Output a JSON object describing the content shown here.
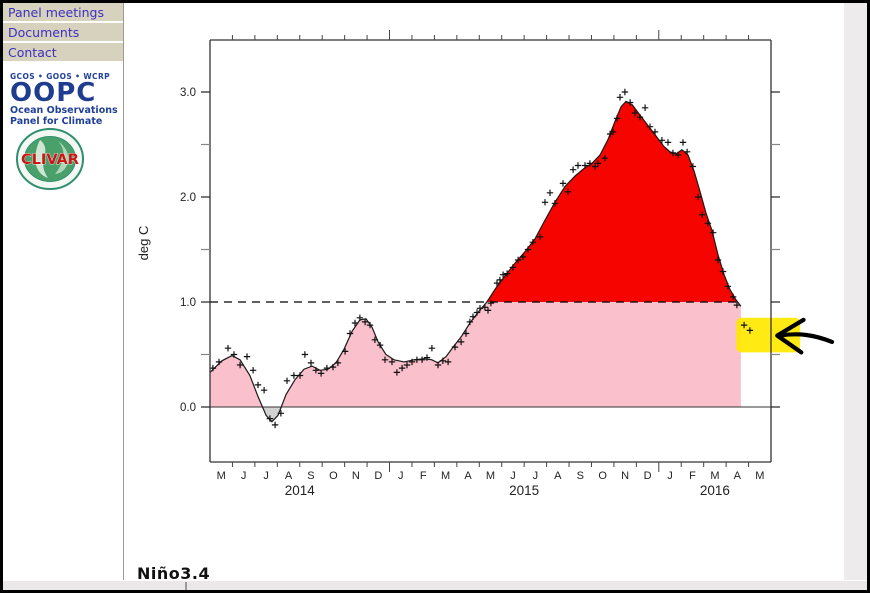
{
  "page": {
    "sidebar": {
      "links": [
        {
          "label": "Panel meetings"
        },
        {
          "label": "Documents"
        },
        {
          "label": "Contact"
        }
      ],
      "oopc_logo": {
        "orgs_line": "GCOS • GOOS • WCRP",
        "acronym": "OOPC",
        "name_line1": "Ocean Observations",
        "name_line2": "Panel for Climate"
      },
      "clivar_logo": {
        "text": "CLIVAR"
      }
    },
    "footer_caption": "Niño3.4",
    "colors": {
      "sidebar_bg": "#d6d2bd",
      "link_text": "#3d2fc0",
      "logo_navy": "#1e3d8f",
      "clivar_red": "#cc1414",
      "clivar_green": "#4aa06a"
    }
  },
  "chart_data": {
    "type": "area",
    "title": "",
    "xlabel": "",
    "ylabel": "deg C",
    "grid": false,
    "x_axis": {
      "start_month": "May 2014",
      "end_month": "May 2016",
      "months_shown": 25,
      "month_labels": [
        "M",
        "J",
        "J",
        "A",
        "S",
        "O",
        "N",
        "D",
        "J",
        "F",
        "M",
        "A",
        "M",
        "J",
        "J",
        "A",
        "S",
        "O",
        "N",
        "D",
        "J",
        "F",
        "M",
        "A",
        "M"
      ],
      "year_labels": [
        {
          "label": "2014",
          "span_months": [
            0,
            8
          ]
        },
        {
          "label": "2015",
          "span_months": [
            8,
            20
          ]
        },
        {
          "label": "2016",
          "span_months": [
            20,
            25
          ]
        }
      ]
    },
    "y_axis": {
      "min": -0.52,
      "max": 3.5,
      "major_ticks": [
        0,
        1,
        2,
        3
      ],
      "major_tick_labels": [
        "0.0",
        "1.0",
        "2.0",
        "3.0"
      ],
      "minor_ticks": [
        0.5,
        1.5,
        2.5
      ]
    },
    "threshold_line": {
      "value": 1.0,
      "style": "dashed",
      "color": "#000000"
    },
    "zero_line": {
      "value": 0.0,
      "style": "solid",
      "color": "#333333"
    },
    "colors": {
      "above_threshold_fill": "#f60400",
      "below_threshold_fill": "#fac0cc",
      "below_zero_fill": "#d2d2d2",
      "line": "#1a1a1a",
      "marker": "#111111",
      "axis": "#333333"
    },
    "series": [
      {
        "name": "smoothed-sst-anomaly",
        "style": "line",
        "points": [
          [
            0,
            0.33
          ],
          [
            0.53,
            0.44
          ],
          [
            0.98,
            0.49
          ],
          [
            1.34,
            0.45
          ],
          [
            1.78,
            0.3
          ],
          [
            2.14,
            0.1
          ],
          [
            2.5,
            -0.08
          ],
          [
            2.76,
            -0.14
          ],
          [
            3.03,
            -0.08
          ],
          [
            3.39,
            0.12
          ],
          [
            3.79,
            0.26
          ],
          [
            4.19,
            0.36
          ],
          [
            4.55,
            0.39
          ],
          [
            4.9,
            0.35
          ],
          [
            5.26,
            0.36
          ],
          [
            5.61,
            0.42
          ],
          [
            5.97,
            0.55
          ],
          [
            6.33,
            0.72
          ],
          [
            6.68,
            0.83
          ],
          [
            6.95,
            0.84
          ],
          [
            7.22,
            0.76
          ],
          [
            7.49,
            0.62
          ],
          [
            7.84,
            0.5
          ],
          [
            8.2,
            0.45
          ],
          [
            8.65,
            0.43
          ],
          [
            9.09,
            0.45
          ],
          [
            9.54,
            0.46
          ],
          [
            9.89,
            0.45
          ],
          [
            10.16,
            0.42
          ],
          [
            10.52,
            0.48
          ],
          [
            10.87,
            0.58
          ],
          [
            11.23,
            0.68
          ],
          [
            11.58,
            0.8
          ],
          [
            11.94,
            0.9
          ],
          [
            12.34,
            1.0
          ],
          [
            12.7,
            1.12
          ],
          [
            13.15,
            1.25
          ],
          [
            13.59,
            1.37
          ],
          [
            14.04,
            1.48
          ],
          [
            14.48,
            1.6
          ],
          [
            14.93,
            1.78
          ],
          [
            15.37,
            1.95
          ],
          [
            15.82,
            2.1
          ],
          [
            16.27,
            2.2
          ],
          [
            16.71,
            2.28
          ],
          [
            17.02,
            2.32
          ],
          [
            17.38,
            2.4
          ],
          [
            17.74,
            2.55
          ],
          [
            18.05,
            2.72
          ],
          [
            18.32,
            2.86
          ],
          [
            18.54,
            2.91
          ],
          [
            18.81,
            2.88
          ],
          [
            19.16,
            2.78
          ],
          [
            19.52,
            2.68
          ],
          [
            19.88,
            2.58
          ],
          [
            20.23,
            2.48
          ],
          [
            20.5,
            2.43
          ],
          [
            20.77,
            2.41
          ],
          [
            21.03,
            2.45
          ],
          [
            21.3,
            2.4
          ],
          [
            21.57,
            2.25
          ],
          [
            21.84,
            2.05
          ],
          [
            22.1,
            1.85
          ],
          [
            22.37,
            1.68
          ],
          [
            22.64,
            1.45
          ],
          [
            22.91,
            1.26
          ],
          [
            23.17,
            1.12
          ],
          [
            23.44,
            1.02
          ],
          [
            23.66,
            0.96
          ]
        ]
      },
      {
        "name": "weekly-observations",
        "style": "marker",
        "marker": "+",
        "points": [
          [
            0.13,
            0.37
          ],
          [
            0.4,
            0.43
          ],
          [
            0.8,
            0.56
          ],
          [
            1.07,
            0.5
          ],
          [
            1.34,
            0.4
          ],
          [
            1.65,
            0.48
          ],
          [
            1.92,
            0.35
          ],
          [
            2.14,
            0.21
          ],
          [
            2.41,
            0.16
          ],
          [
            2.67,
            -0.11
          ],
          [
            2.9,
            -0.17
          ],
          [
            3.16,
            -0.06
          ],
          [
            3.43,
            0.25
          ],
          [
            3.74,
            0.3
          ],
          [
            4.01,
            0.3
          ],
          [
            4.23,
            0.5
          ],
          [
            4.5,
            0.42
          ],
          [
            4.72,
            0.35
          ],
          [
            4.95,
            0.32
          ],
          [
            5.21,
            0.37
          ],
          [
            5.48,
            0.38
          ],
          [
            5.7,
            0.42
          ],
          [
            6.02,
            0.53
          ],
          [
            6.24,
            0.7
          ],
          [
            6.46,
            0.8
          ],
          [
            6.68,
            0.85
          ],
          [
            6.91,
            0.81
          ],
          [
            7.13,
            0.78
          ],
          [
            7.35,
            0.64
          ],
          [
            7.58,
            0.59
          ],
          [
            7.8,
            0.45
          ],
          [
            8.11,
            0.43
          ],
          [
            8.33,
            0.33
          ],
          [
            8.56,
            0.37
          ],
          [
            8.78,
            0.4
          ],
          [
            9.0,
            0.43
          ],
          [
            9.22,
            0.45
          ],
          [
            9.45,
            0.45
          ],
          [
            9.67,
            0.47
          ],
          [
            9.89,
            0.56
          ],
          [
            10.16,
            0.4
          ],
          [
            10.38,
            0.44
          ],
          [
            10.61,
            0.43
          ],
          [
            10.92,
            0.57
          ],
          [
            11.19,
            0.62
          ],
          [
            11.41,
            0.7
          ],
          [
            11.58,
            0.81
          ],
          [
            11.72,
            0.86
          ],
          [
            11.9,
            0.9
          ],
          [
            12.03,
            0.94
          ],
          [
            12.25,
            0.95
          ],
          [
            12.39,
            0.92
          ],
          [
            12.52,
            0.99
          ],
          [
            12.79,
            1.18
          ],
          [
            12.92,
            1.21
          ],
          [
            13.06,
            1.26
          ],
          [
            13.24,
            1.27
          ],
          [
            13.5,
            1.33
          ],
          [
            13.73,
            1.4
          ],
          [
            13.95,
            1.43
          ],
          [
            14.17,
            1.5
          ],
          [
            14.39,
            1.57
          ],
          [
            14.71,
            1.62
          ],
          [
            14.93,
            1.95
          ],
          [
            15.15,
            2.04
          ],
          [
            15.37,
            1.94
          ],
          [
            15.73,
            2.13
          ],
          [
            15.95,
            2.05
          ],
          [
            16.18,
            2.26
          ],
          [
            16.4,
            2.3
          ],
          [
            16.71,
            2.3
          ],
          [
            16.93,
            2.32
          ],
          [
            17.16,
            2.29
          ],
          [
            17.29,
            2.32
          ],
          [
            17.6,
            2.37
          ],
          [
            17.83,
            2.6
          ],
          [
            17.96,
            2.62
          ],
          [
            18.14,
            2.75
          ],
          [
            18.27,
            2.95
          ],
          [
            18.49,
            3.0
          ],
          [
            18.72,
            2.9
          ],
          [
            18.94,
            2.8
          ],
          [
            19.16,
            2.76
          ],
          [
            19.39,
            2.85
          ],
          [
            19.61,
            2.67
          ],
          [
            19.83,
            2.62
          ],
          [
            20.14,
            2.54
          ],
          [
            20.41,
            2.52
          ],
          [
            20.63,
            2.42
          ],
          [
            20.86,
            2.4
          ],
          [
            21.08,
            2.52
          ],
          [
            21.26,
            2.43
          ],
          [
            21.52,
            2.29
          ],
          [
            21.75,
            2.0
          ],
          [
            21.93,
            1.83
          ],
          [
            22.19,
            1.75
          ],
          [
            22.42,
            1.66
          ],
          [
            22.64,
            1.4
          ],
          [
            22.86,
            1.29
          ],
          [
            23.08,
            1.15
          ],
          [
            23.31,
            1.05
          ],
          [
            23.48,
            0.97
          ],
          [
            23.8,
            0.78
          ],
          [
            24.06,
            0.73
          ]
        ]
      }
    ],
    "annotations": [
      {
        "type": "highlighter-box",
        "color": "#ffe800",
        "month_from": 23.45,
        "month_to": 26.3,
        "value_from": 0.52,
        "value_to": 0.85
      },
      {
        "type": "hand-drawn-arrow",
        "color": "#000000",
        "tip": [
          25.28,
          0.68
        ],
        "tail": [
          27.72,
          0.62
        ],
        "barb_up": [
          26.45,
          0.83
        ],
        "barb_down": [
          26.35,
          0.52
        ]
      }
    ]
  }
}
